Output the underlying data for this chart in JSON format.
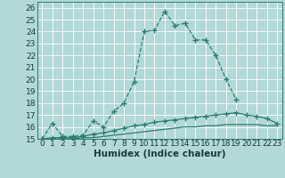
{
  "xlabel": "Humidex (Indice chaleur)",
  "background_color": "#b2d8d8",
  "grid_color": "#ffffff",
  "line_color": "#2d7d6e",
  "xlim": [
    -0.5,
    23.5
  ],
  "ylim": [
    15,
    26.5
  ],
  "xticks": [
    0,
    1,
    2,
    3,
    4,
    5,
    6,
    7,
    8,
    9,
    10,
    11,
    12,
    13,
    14,
    15,
    16,
    17,
    18,
    19,
    20,
    21,
    22,
    23
  ],
  "yticks": [
    15,
    16,
    17,
    18,
    19,
    20,
    21,
    22,
    23,
    24,
    25,
    26
  ],
  "line1_x": [
    0,
    1,
    2,
    3,
    4,
    5,
    6,
    7,
    8,
    9,
    10,
    11,
    12,
    13,
    14,
    15,
    16,
    17,
    18,
    19
  ],
  "line1_y": [
    15.0,
    16.3,
    15.2,
    15.2,
    15.3,
    16.5,
    16.0,
    17.3,
    18.0,
    19.8,
    24.0,
    24.1,
    25.7,
    24.5,
    24.7,
    23.3,
    23.3,
    22.0,
    20.0,
    18.3
  ],
  "line2_x": [
    0,
    1,
    2,
    3,
    4,
    5,
    6,
    7,
    8,
    9,
    10,
    11,
    12,
    13,
    14,
    15,
    16,
    17,
    18,
    19,
    20,
    21,
    22,
    23
  ],
  "line2_y": [
    15.0,
    15.1,
    15.1,
    15.1,
    15.2,
    15.4,
    15.5,
    15.7,
    15.9,
    16.1,
    16.2,
    16.4,
    16.5,
    16.6,
    16.7,
    16.8,
    16.9,
    17.0,
    17.1,
    17.2,
    17.0,
    16.9,
    16.7,
    16.3
  ],
  "line3_x": [
    0,
    1,
    2,
    3,
    4,
    5,
    6,
    7,
    8,
    9,
    10,
    11,
    12,
    13,
    14,
    15,
    16,
    17,
    18,
    19,
    20,
    21,
    22,
    23
  ],
  "line3_y": [
    15.0,
    15.0,
    15.0,
    15.0,
    15.1,
    15.1,
    15.2,
    15.3,
    15.4,
    15.5,
    15.6,
    15.7,
    15.8,
    15.9,
    16.0,
    16.0,
    16.1,
    16.1,
    16.2,
    16.2,
    16.2,
    16.2,
    16.1,
    16.1
  ],
  "tick_fontsize": 6.5,
  "xlabel_fontsize": 7.5
}
